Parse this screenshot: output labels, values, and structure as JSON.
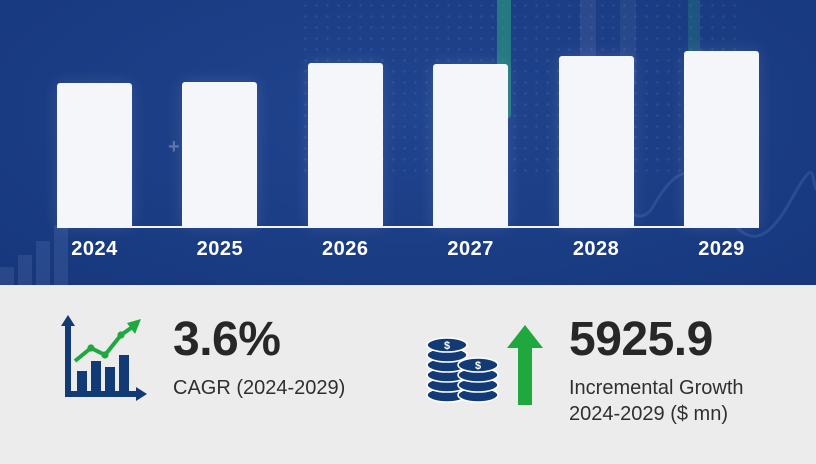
{
  "chart_data": {
    "type": "bar",
    "title": "Market size by year (no value labels shown)",
    "categories": [
      "2024",
      "2025",
      "2026",
      "2027",
      "2028",
      "2029"
    ],
    "values": [
      143,
      144,
      163,
      162,
      170,
      175
    ],
    "unit": "relative bar height (px); no value axis or data labels shown",
    "xlabel": "",
    "ylabel": "",
    "value_labels_shown": false,
    "y_axis_shown": false,
    "grid": false,
    "legend": "none",
    "bar_color": "#f4f6f9",
    "background_color": "#17387d",
    "baseline_color": "#ffffff"
  },
  "stats": {
    "cagr_value": "3.6%",
    "cagr_label": "CAGR (2024-2029)",
    "growth_value": "5925.9",
    "growth_label_line1": "Incremental Growth",
    "growth_label_line2": "2024-2029 ($ mn)"
  },
  "icons": {
    "cagr": "growth-chart-icon",
    "growth": "coins-icon",
    "arrow": "up-arrow-icon"
  },
  "colors": {
    "navy_bg": "#17387d",
    "navy_deep": "#0c2356",
    "bar_color": "#f4f6f9",
    "accent_green": "#1ea83e",
    "icon_navy": "#123a75",
    "section_bg": "#ececec",
    "text_dark": "#272727",
    "white": "#ffffff"
  }
}
